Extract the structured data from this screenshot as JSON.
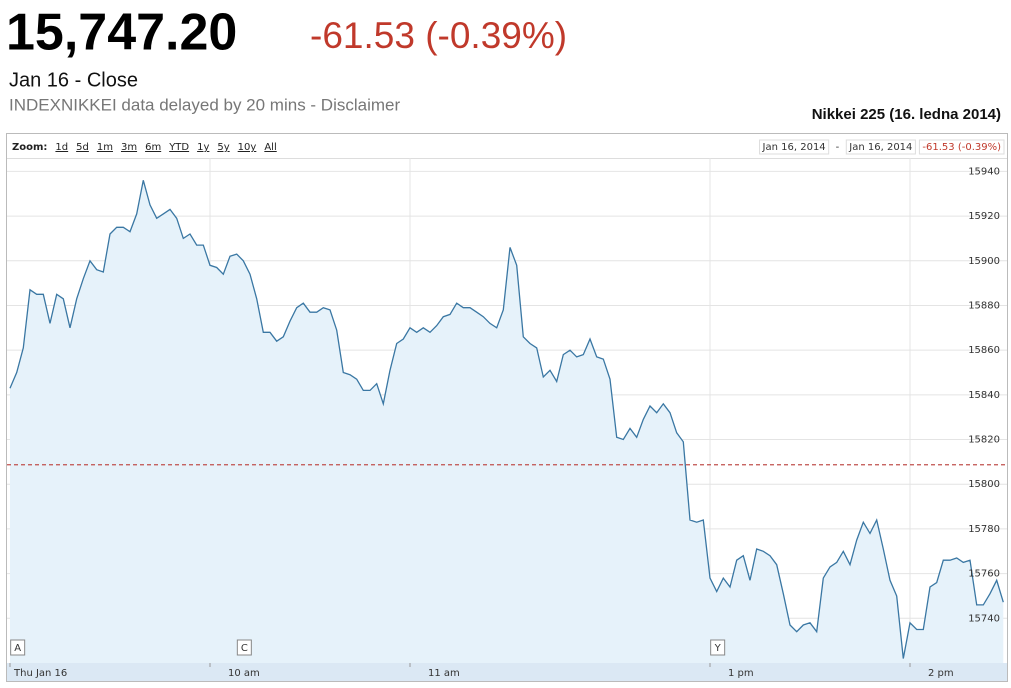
{
  "header": {
    "price": "15,747.20",
    "change": "-61.53 (-0.39%)",
    "date": "Jan 16 - Close",
    "source": "INDEXNIKKEI data delayed by 20 mins - Disclaimer"
  },
  "chart_data": {
    "type": "area",
    "title": "Nikkei 225 (16. ledna 2014)",
    "zoom_label": "Zoom:",
    "zoom_options": [
      "1d",
      "5d",
      "1m",
      "3m",
      "6m",
      "YTD",
      "1y",
      "5y",
      "10y",
      "All"
    ],
    "range_start": "Jan 16, 2014",
    "range_separator": "-",
    "range_end": "Jan 16, 2014",
    "range_change": "-61.53 (-0.39%)",
    "color": "#3a77a3",
    "fill": "#e6f2fa",
    "x": [
      0,
      2,
      4,
      6,
      8,
      10,
      12,
      14,
      16,
      18,
      20,
      22,
      24,
      26,
      28,
      30,
      32,
      34,
      36,
      38,
      40,
      42,
      44,
      46,
      48,
      50,
      52,
      54,
      56,
      58,
      60,
      62,
      64,
      66,
      68,
      70,
      72,
      74,
      76,
      78,
      80,
      82,
      84,
      86,
      88,
      90,
      92,
      94,
      96,
      98,
      100,
      102,
      104,
      106,
      108,
      110,
      112,
      114,
      116,
      118,
      120,
      122,
      124,
      126,
      128,
      130,
      132,
      134,
      136,
      138,
      140,
      142,
      144,
      146,
      148,
      150,
      152,
      154,
      156,
      158,
      160,
      162,
      164,
      166,
      168,
      170,
      172,
      174,
      176,
      178,
      180,
      182,
      184,
      186,
      188,
      190,
      192,
      194,
      196,
      198,
      200,
      202,
      204,
      206,
      208,
      210,
      212,
      214,
      216,
      218,
      220,
      222,
      224,
      226,
      228,
      230,
      232,
      234,
      236,
      238,
      240,
      242,
      244,
      246,
      248,
      250,
      252,
      254,
      256,
      258,
      260,
      262,
      264,
      266,
      268,
      270,
      272,
      274,
      276,
      278,
      280,
      282,
      284,
      286,
      288,
      290,
      292,
      294,
      296,
      298
    ],
    "values": [
      15843,
      15850,
      15861,
      15887,
      15885,
      15885,
      15872,
      15885,
      15883,
      15870,
      15883,
      15892,
      15900,
      15896,
      15895,
      15912,
      15915,
      15915,
      15913,
      15921,
      15936,
      15925,
      15919,
      15921,
      15923,
      15919,
      15910,
      15912,
      15907,
      15907,
      15898,
      15897,
      15894,
      15902,
      15903,
      15900,
      15894,
      15883,
      15868,
      15868,
      15864,
      15866,
      15873,
      15879,
      15881,
      15877,
      15877,
      15879,
      15878,
      15869,
      15850,
      15849,
      15847,
      15842,
      15842,
      15845,
      15836,
      15851,
      15863,
      15865,
      15870,
      15868,
      15870,
      15868,
      15871,
      15875,
      15876,
      15881,
      15879,
      15879,
      15877,
      15875,
      15872,
      15870,
      15878,
      15906,
      15898,
      15866,
      15863,
      15861,
      15848,
      15851,
      15846,
      15858,
      15860,
      15857,
      15858,
      15865,
      15857,
      15856,
      15847,
      15821,
      15820,
      15825,
      15821,
      15829,
      15835,
      15832,
      15836,
      15832,
      15823,
      15819,
      15784,
      15783,
      15784,
      15758,
      15752,
      15758,
      15754,
      15766,
      15768,
      15757,
      15771,
      15770,
      15768,
      15764,
      15751,
      15737,
      15734,
      15737,
      15738,
      15734,
      15758,
      15763,
      15765,
      15770,
      15764,
      15775,
      15783,
      15778,
      15784,
      15771,
      15757,
      15750,
      15722,
      15738,
      15735,
      15735,
      15754,
      15756,
      15766,
      15766,
      15767,
      15765,
      15766,
      15746,
      15746,
      15751,
      15757,
      15747.2
    ],
    "previous_close": 15808.73,
    "previous_close_color": "#c0504d",
    "flags": [
      {
        "label": "A",
        "x": 2
      },
      {
        "label": "C",
        "x": 70
      },
      {
        "label": "Y",
        "x": 212
      }
    ],
    "xlim": [
      0,
      300
    ],
    "xticks": [
      {
        "value": 0,
        "label": "Thu Jan 16"
      },
      {
        "value": 60,
        "label": "10 am"
      },
      {
        "value": 120,
        "label": "11 am"
      },
      {
        "value": 210,
        "label": "1 pm"
      },
      {
        "value": 270,
        "label": "2 pm"
      }
    ],
    "ylim": [
      15720,
      15946
    ],
    "yticks": [
      15740,
      15760,
      15780,
      15800,
      15820,
      15840,
      15860,
      15880,
      15900,
      15920,
      15940
    ],
    "grid": true
  }
}
